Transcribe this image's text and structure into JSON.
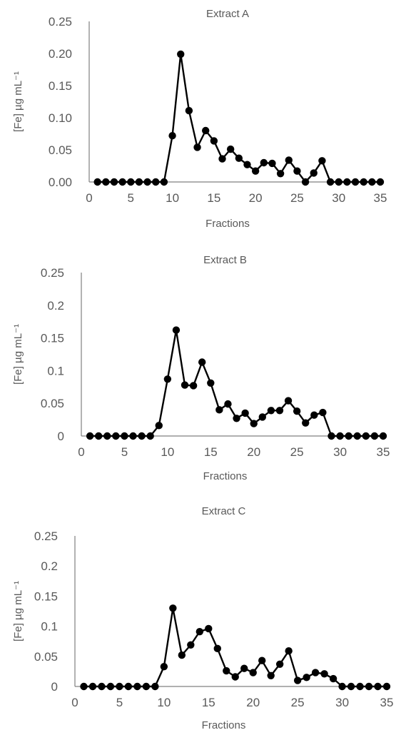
{
  "chart_data": [
    {
      "type": "line",
      "title": "Extract A",
      "xlabel": "Fractions",
      "ylabel": "[Fe] µg mL⁻¹",
      "xlim": [
        0,
        35
      ],
      "ylim": [
        0,
        0.25
      ],
      "xticks": [
        "0",
        "5",
        "10",
        "15",
        "20",
        "25",
        "30",
        "35"
      ],
      "yticks": [
        "0.00",
        "0.05",
        "0.10",
        "0.15",
        "0.20",
        "0.25"
      ],
      "grid": false,
      "series": [
        {
          "x": [
            1,
            2,
            3,
            4,
            5,
            6,
            7,
            8,
            9,
            10,
            11,
            12,
            13,
            14,
            15,
            16,
            17,
            18,
            19,
            20,
            21,
            22,
            23,
            24,
            25,
            26,
            27,
            28,
            29,
            30,
            31,
            32,
            33,
            34,
            35
          ],
          "values": [
            0,
            0,
            0,
            0,
            0,
            0,
            0,
            0,
            0,
            0.072,
            0.199,
            0.111,
            0.054,
            0.08,
            0.064,
            0.036,
            0.051,
            0.037,
            0.027,
            0.017,
            0.03,
            0.029,
            0.013,
            0.034,
            0.017,
            0,
            0.014,
            0.033,
            0,
            0,
            0,
            0,
            0,
            0,
            0
          ]
        }
      ]
    },
    {
      "type": "line",
      "title": "Extract B",
      "xlabel": "Fractions",
      "ylabel": "[Fe] µg mL⁻¹",
      "xlim": [
        0,
        35
      ],
      "ylim": [
        0,
        0.25
      ],
      "xticks": [
        "0",
        "5",
        "10",
        "15",
        "20",
        "25",
        "30",
        "35"
      ],
      "yticks": [
        "0",
        "0.05",
        "0.1",
        "0.15",
        "0.2",
        "0.25"
      ],
      "grid": false,
      "series": [
        {
          "x": [
            1,
            2,
            3,
            4,
            5,
            6,
            7,
            8,
            9,
            10,
            11,
            12,
            13,
            14,
            15,
            16,
            17,
            18,
            19,
            20,
            21,
            22,
            23,
            24,
            25,
            26,
            27,
            28,
            29,
            30,
            31,
            32,
            33,
            34,
            35
          ],
          "values": [
            0,
            0,
            0,
            0,
            0,
            0,
            0,
            0,
            0.016,
            0.087,
            0.162,
            0.078,
            0.077,
            0.113,
            0.081,
            0.04,
            0.049,
            0.027,
            0.035,
            0.019,
            0.029,
            0.039,
            0.039,
            0.054,
            0.038,
            0.02,
            0.032,
            0.036,
            0,
            0,
            0,
            0,
            0,
            0,
            0
          ]
        }
      ]
    },
    {
      "type": "line",
      "title": "Extract C",
      "xlabel": "Fractions",
      "ylabel": "[Fe] µg mL⁻¹",
      "xlim": [
        0,
        35
      ],
      "ylim": [
        0,
        0.25
      ],
      "xticks": [
        "0",
        "5",
        "10",
        "15",
        "20",
        "25",
        "30",
        "35"
      ],
      "yticks": [
        "0",
        "0.05",
        "0.1",
        "0.15",
        "0.2",
        "0.25"
      ],
      "grid": false,
      "series": [
        {
          "x": [
            1,
            2,
            3,
            4,
            5,
            6,
            7,
            8,
            9,
            10,
            11,
            12,
            13,
            14,
            15,
            16,
            17,
            18,
            19,
            20,
            21,
            22,
            23,
            24,
            25,
            26,
            27,
            28,
            29,
            30,
            31,
            32,
            33,
            34,
            35
          ],
          "values": [
            0,
            0,
            0,
            0,
            0,
            0,
            0,
            0,
            0,
            0.033,
            0.13,
            0.052,
            0.069,
            0.091,
            0.096,
            0.063,
            0.026,
            0.016,
            0.03,
            0.023,
            0.043,
            0.018,
            0.037,
            0.059,
            0.01,
            0.015,
            0.023,
            0.021,
            0.013,
            0,
            0,
            0,
            0,
            0,
            0
          ]
        }
      ]
    }
  ],
  "colors": {
    "line": "#000000",
    "axis": "#808080",
    "text": "#595959"
  }
}
